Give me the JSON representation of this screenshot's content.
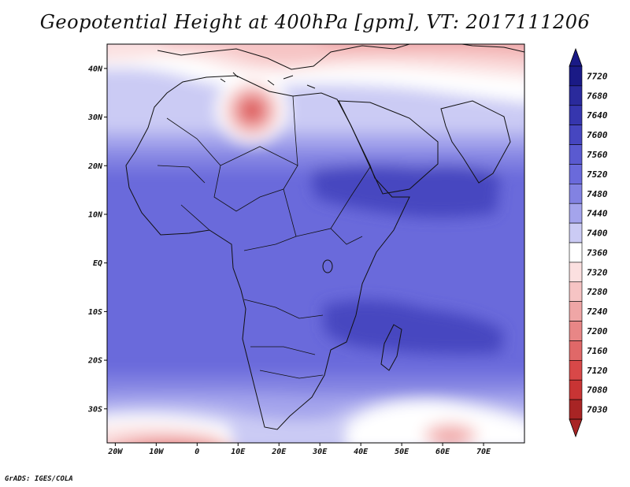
{
  "title": "Geopotential Height at 400hPa [gpm], VT: 2017111206",
  "credit": "GrADS: IGES/COLA",
  "map": {
    "lon_range": [
      -22,
      80
    ],
    "lat_range": [
      -37,
      45
    ],
    "lon_ticks": [
      {
        "lon": -20,
        "label": "20W"
      },
      {
        "lon": -10,
        "label": "10W"
      },
      {
        "lon": 0,
        "label": "0"
      },
      {
        "lon": 10,
        "label": "10E"
      },
      {
        "lon": 20,
        "label": "20E"
      },
      {
        "lon": 30,
        "label": "30E"
      },
      {
        "lon": 40,
        "label": "40E"
      },
      {
        "lon": 50,
        "label": "50E"
      },
      {
        "lon": 60,
        "label": "60E"
      },
      {
        "lon": 70,
        "label": "70E"
      }
    ],
    "lat_ticks": [
      {
        "lat": 40,
        "label": "40N"
      },
      {
        "lat": 30,
        "label": "30N"
      },
      {
        "lat": 20,
        "label": "20N"
      },
      {
        "lat": 10,
        "label": "10N"
      },
      {
        "lat": 0,
        "label": "EQ"
      },
      {
        "lat": -10,
        "label": "10S"
      },
      {
        "lat": -20,
        "label": "20S"
      },
      {
        "lat": -30,
        "label": "30S"
      }
    ]
  },
  "colorbar": {
    "levels": [
      {
        "value": "7720",
        "color": "#1a1a86"
      },
      {
        "value": "7680",
        "color": "#2a2a9c"
      },
      {
        "value": "7640",
        "color": "#3636ae"
      },
      {
        "value": "7600",
        "color": "#4646c0"
      },
      {
        "value": "7560",
        "color": "#5a5ad0"
      },
      {
        "value": "7520",
        "color": "#6a6adb"
      },
      {
        "value": "7480",
        "color": "#8282e2"
      },
      {
        "value": "7440",
        "color": "#a4a4ec"
      },
      {
        "value": "7400",
        "color": "#cbcbf4"
      },
      {
        "value": "7360",
        "color": "#ffffff"
      },
      {
        "value": "7320",
        "color": "#fbe0e0"
      },
      {
        "value": "7280",
        "color": "#f6c4c4"
      },
      {
        "value": "7240",
        "color": "#efa6a6"
      },
      {
        "value": "7200",
        "color": "#e88686"
      },
      {
        "value": "7160",
        "color": "#e06868"
      },
      {
        "value": "7120",
        "color": "#d84848"
      },
      {
        "value": "7080",
        "color": "#c83434"
      },
      {
        "value": "7030",
        "color": "#a82424"
      }
    ],
    "over_color": "#1a1a86",
    "under_color": "#a82424"
  }
}
